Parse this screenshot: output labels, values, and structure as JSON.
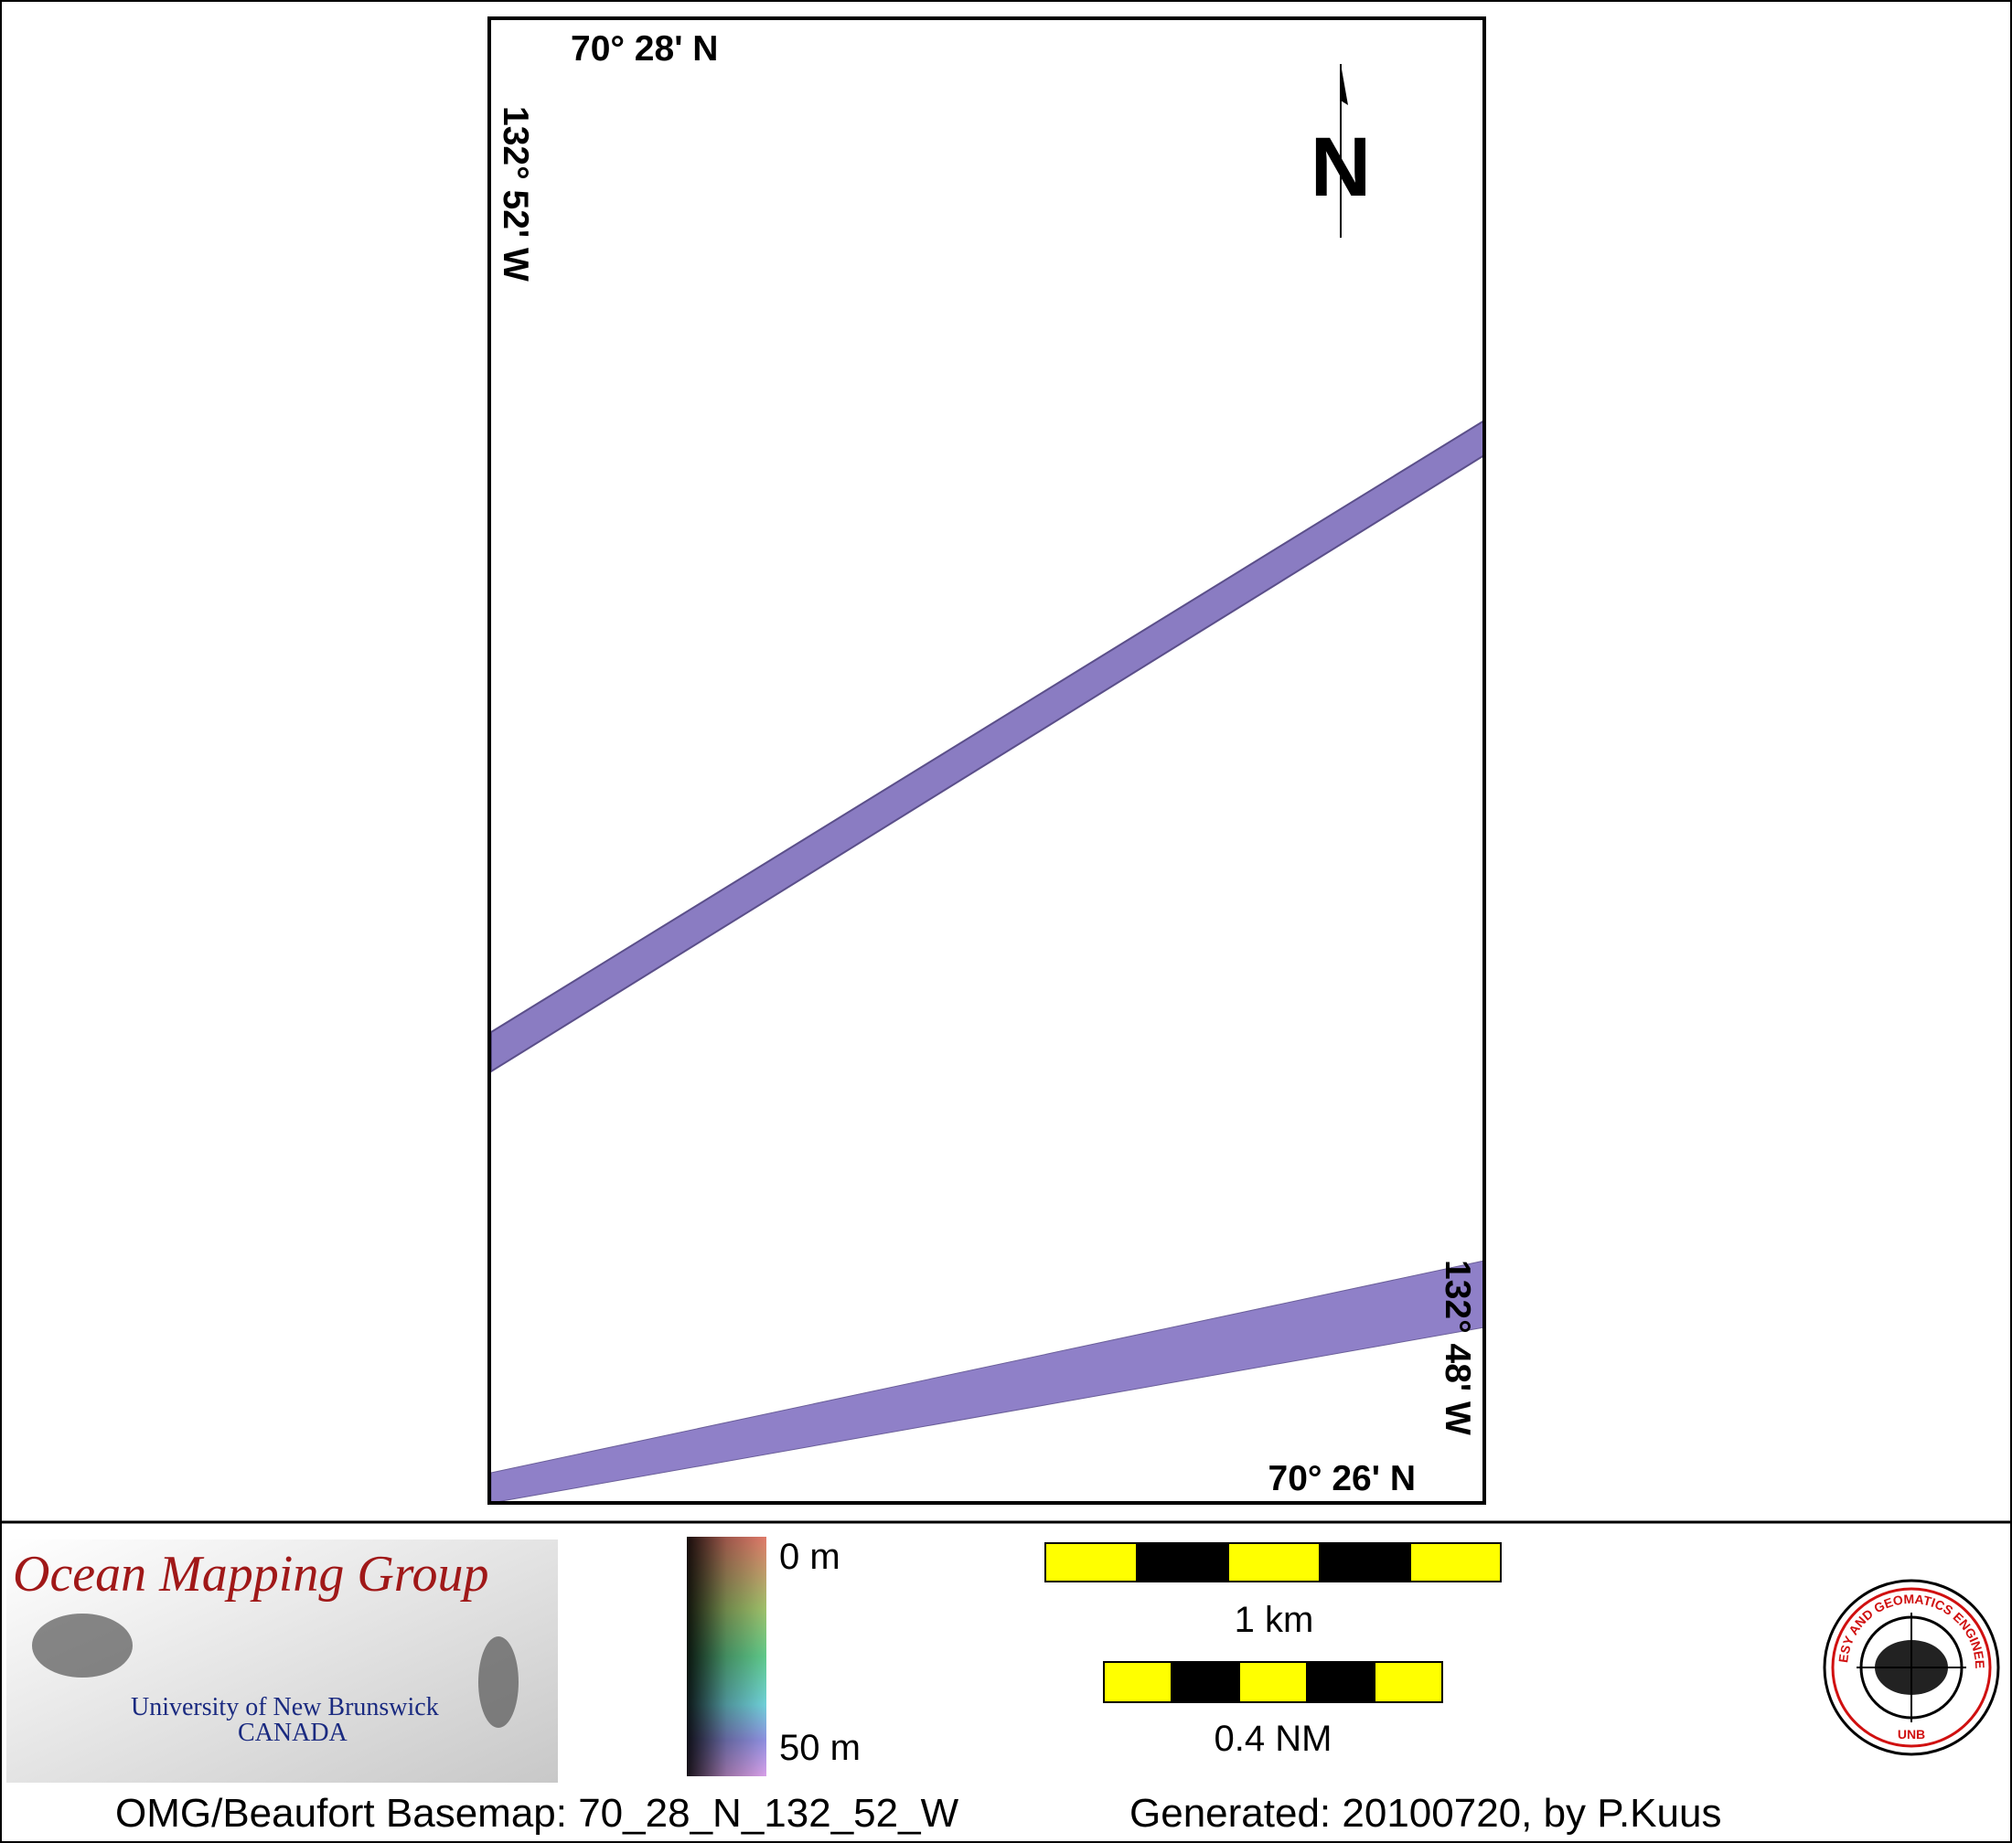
{
  "map": {
    "corner_labels": {
      "top_lat": "70° 28' N",
      "left_lon": "132° 52' W",
      "bottom_lat": "70° 26' N",
      "right_lon": "132° 48' W"
    },
    "north_arrow": "N"
  },
  "legend": {
    "depth_top": "0 m",
    "depth_bottom": "50 m",
    "scale_km": "1 km",
    "scale_nm": "0.4 NM"
  },
  "logo": {
    "title": "Ocean Mapping Group",
    "university": "University of New Brunswick",
    "country": "CANADA",
    "seal_ring": "GEODESY AND GEOMATICS ENGINEERING",
    "seal_name": "UNB"
  },
  "footer": {
    "basemap": "OMG/Beaufort Basemap: 70_28_N_132_52_W",
    "generated": "Generated: 20100720, by P.Kuus"
  }
}
